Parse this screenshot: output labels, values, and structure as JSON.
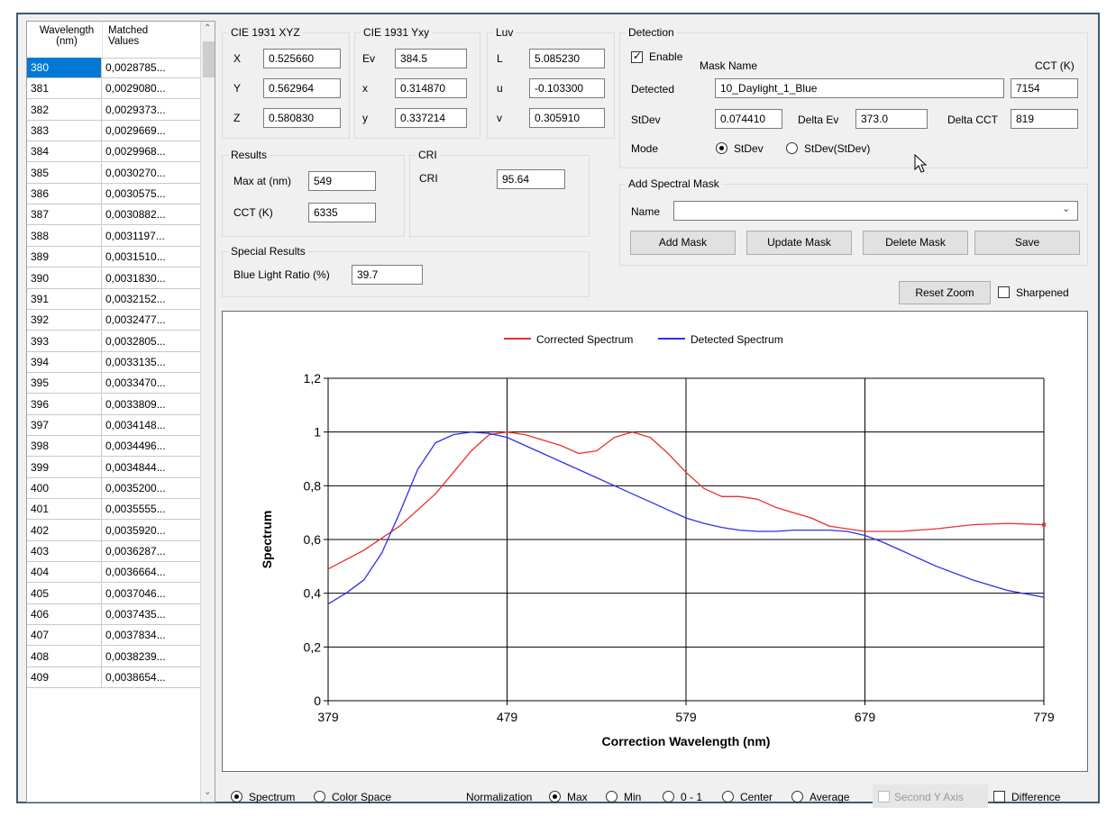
{
  "table": {
    "columns": [
      "Wavelength (nm)",
      "Matched Values"
    ],
    "rows": [
      [
        "380",
        "0,0028785..."
      ],
      [
        "381",
        "0,0029080..."
      ],
      [
        "382",
        "0,0029373..."
      ],
      [
        "383",
        "0,0029669..."
      ],
      [
        "384",
        "0,0029968..."
      ],
      [
        "385",
        "0,0030270..."
      ],
      [
        "386",
        "0,0030575..."
      ],
      [
        "387",
        "0,0030882..."
      ],
      [
        "388",
        "0,0031197..."
      ],
      [
        "389",
        "0,0031510..."
      ],
      [
        "390",
        "0,0031830..."
      ],
      [
        "391",
        "0,0032152..."
      ],
      [
        "392",
        "0,0032477..."
      ],
      [
        "393",
        "0,0032805..."
      ],
      [
        "394",
        "0,0033135..."
      ],
      [
        "395",
        "0,0033470..."
      ],
      [
        "396",
        "0,0033809..."
      ],
      [
        "397",
        "0,0034148..."
      ],
      [
        "398",
        "0,0034496..."
      ],
      [
        "399",
        "0,0034844..."
      ],
      [
        "400",
        "0,0035200..."
      ],
      [
        "401",
        "0,0035555..."
      ],
      [
        "402",
        "0,0035920..."
      ],
      [
        "403",
        "0,0036287..."
      ],
      [
        "404",
        "0,0036664..."
      ],
      [
        "405",
        "0,0037046..."
      ],
      [
        "406",
        "0,0037435..."
      ],
      [
        "407",
        "0,0037834..."
      ],
      [
        "408",
        "0,0038239..."
      ],
      [
        "409",
        "0,0038654..."
      ]
    ]
  },
  "xyz": {
    "title": "CIE 1931 XYZ",
    "X_label": "X",
    "X": "0.525660",
    "Y_label": "Y",
    "Y": "0.562964",
    "Z_label": "Z",
    "Z": "0.580830"
  },
  "yxy": {
    "title": "CIE 1931 Yxy",
    "Ev_label": "Ev",
    "Ev": "384.5",
    "x_label": "x",
    "x": "0.314870",
    "y_label": "y",
    "y": "0.337214"
  },
  "luv": {
    "title": "Luv",
    "L_label": "L",
    "L": "5.085230",
    "u_label": "u",
    "u": "-0.103300",
    "v_label": "v",
    "v": "0.305910"
  },
  "results": {
    "title": "Results",
    "max_label": "Max at (nm)",
    "max": "549",
    "cct_label": "CCT (K)",
    "cct": "6335"
  },
  "cri": {
    "title": "CRI",
    "label": "CRI",
    "value": "95.64"
  },
  "special": {
    "title": "Special Results",
    "blr_label": "Blue Light Ratio (%)",
    "blr": "39.7"
  },
  "detection": {
    "title": "Detection",
    "enable_label": "Enable",
    "enable_checked": true,
    "mask_name_label": "Mask Name",
    "cct_label": "CCT (K)",
    "detected_label": "Detected",
    "mask_name": "10_Daylight_1_Blue",
    "cct": "7154",
    "stdev_label": "StDev",
    "stdev": "0.074410",
    "delta_ev_label": "Delta Ev",
    "delta_ev": "373.0",
    "delta_cct_label": "Delta CCT",
    "delta_cct": "819",
    "mode_label": "Mode",
    "mode_opt1": "StDev",
    "mode_opt2": "StDev(StDev)"
  },
  "add_mask": {
    "title": "Add Spectral Mask",
    "name_label": "Name",
    "name_value": "",
    "add": "Add Mask",
    "update": "Update Mask",
    "delete": "Delete Mask",
    "save": "Save"
  },
  "toolbar": {
    "reset_zoom": "Reset Zoom",
    "sharpened": "Sharpened"
  },
  "bottom": {
    "spectrum": "Spectrum",
    "color_space": "Color Space",
    "normalization": "Normalization",
    "max": "Max",
    "min": "Min",
    "zero_one": "0 - 1",
    "center": "Center",
    "average": "Average",
    "second_y": "Second Y Axis",
    "difference": "Difference"
  },
  "colors": {
    "corrected": "#e8302d",
    "detected": "#2f2fe8",
    "selection": "#0078d7"
  },
  "chart_data": {
    "type": "line",
    "xlabel": "Correction Wavelength (nm)",
    "ylabel": "Spectrum",
    "xlim": [
      379,
      779
    ],
    "ylim": [
      0,
      1.2
    ],
    "x_ticks": [
      "379",
      "479",
      "579",
      "679",
      "779"
    ],
    "y_ticks": [
      "0",
      "0,2",
      "0,4",
      "0,6",
      "0,8",
      "1",
      "1,2"
    ],
    "grid": true,
    "legend": "top-center",
    "series": [
      {
        "name": "Corrected Spectrum",
        "color": "#e8302d",
        "x": [
          379,
          399,
          419,
          439,
          459,
          469,
          479,
          489,
          499,
          509,
          519,
          529,
          539,
          549,
          559,
          569,
          579,
          589,
          599,
          609,
          619,
          629,
          639,
          649,
          659,
          669,
          679,
          689,
          699,
          719,
          739,
          759,
          779
        ],
        "y": [
          0.49,
          0.56,
          0.65,
          0.77,
          0.93,
          0.99,
          1.0,
          0.99,
          0.97,
          0.95,
          0.92,
          0.93,
          0.98,
          1.0,
          0.98,
          0.92,
          0.85,
          0.79,
          0.76,
          0.76,
          0.75,
          0.72,
          0.7,
          0.68,
          0.65,
          0.64,
          0.63,
          0.63,
          0.63,
          0.64,
          0.655,
          0.66,
          0.655
        ]
      },
      {
        "name": "Detected Spectrum",
        "color": "#2f2fe8",
        "x": [
          379,
          389,
          399,
          409,
          419,
          429,
          439,
          449,
          459,
          469,
          479,
          489,
          499,
          509,
          519,
          529,
          539,
          549,
          559,
          569,
          579,
          589,
          599,
          609,
          619,
          629,
          639,
          649,
          659,
          669,
          679,
          689,
          699,
          719,
          739,
          759,
          779
        ],
        "y": [
          0.36,
          0.4,
          0.45,
          0.55,
          0.7,
          0.86,
          0.96,
          0.99,
          1.0,
          0.995,
          0.98,
          0.95,
          0.92,
          0.89,
          0.86,
          0.83,
          0.8,
          0.77,
          0.74,
          0.71,
          0.68,
          0.66,
          0.645,
          0.635,
          0.63,
          0.63,
          0.635,
          0.635,
          0.635,
          0.63,
          0.615,
          0.59,
          0.56,
          0.5,
          0.45,
          0.41,
          0.385
        ]
      }
    ]
  }
}
